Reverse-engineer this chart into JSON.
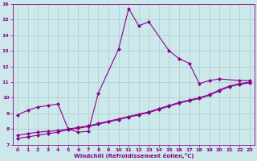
{
  "xlabel": "Windchill (Refroidissement éolien,°C)",
  "background_color": "#cce8eb",
  "line_color": "#8b008b",
  "grid_color": "#aacccc",
  "xlim": [
    -0.5,
    23.5
  ],
  "ylim": [
    7,
    16
  ],
  "xticks": [
    0,
    1,
    2,
    3,
    4,
    5,
    6,
    7,
    8,
    9,
    10,
    11,
    12,
    13,
    14,
    15,
    16,
    17,
    18,
    19,
    20,
    21,
    22,
    23
  ],
  "yticks": [
    7,
    8,
    9,
    10,
    11,
    12,
    13,
    14,
    15,
    16
  ],
  "curve1_x": [
    0,
    1,
    2,
    3,
    4,
    5,
    6,
    7,
    8,
    10,
    11,
    12,
    13,
    15,
    16,
    17,
    18,
    19,
    20,
    22,
    23
  ],
  "curve1_y": [
    8.9,
    9.2,
    9.4,
    9.5,
    9.6,
    8.0,
    7.8,
    7.85,
    10.3,
    13.1,
    15.7,
    14.6,
    14.85,
    13.0,
    12.5,
    12.2,
    10.9,
    11.1,
    11.2,
    11.1,
    11.1
  ],
  "curve2_x": [
    0,
    1,
    2,
    3,
    4,
    5,
    6,
    7,
    8,
    9,
    10,
    11,
    12,
    13,
    14,
    15,
    16,
    17,
    18,
    19,
    20,
    21,
    22,
    23
  ],
  "curve2_y": [
    7.6,
    7.7,
    7.8,
    7.85,
    7.9,
    8.0,
    8.1,
    8.2,
    8.35,
    8.5,
    8.65,
    8.8,
    8.95,
    9.1,
    9.3,
    9.5,
    9.7,
    9.85,
    10.0,
    10.2,
    10.5,
    10.75,
    10.9,
    11.0
  ],
  "curve3_x": [
    0,
    1,
    2,
    3,
    4,
    5,
    6,
    7,
    8,
    9,
    10,
    11,
    12,
    13,
    14,
    15,
    16,
    17,
    18,
    19,
    20,
    21,
    22,
    23
  ],
  "curve3_y": [
    7.4,
    7.5,
    7.6,
    7.7,
    7.8,
    7.95,
    8.05,
    8.15,
    8.3,
    8.45,
    8.6,
    8.75,
    8.9,
    9.05,
    9.25,
    9.45,
    9.65,
    9.8,
    9.95,
    10.15,
    10.45,
    10.7,
    10.85,
    10.95
  ],
  "markersize": 2.5,
  "linewidth": 0.8
}
